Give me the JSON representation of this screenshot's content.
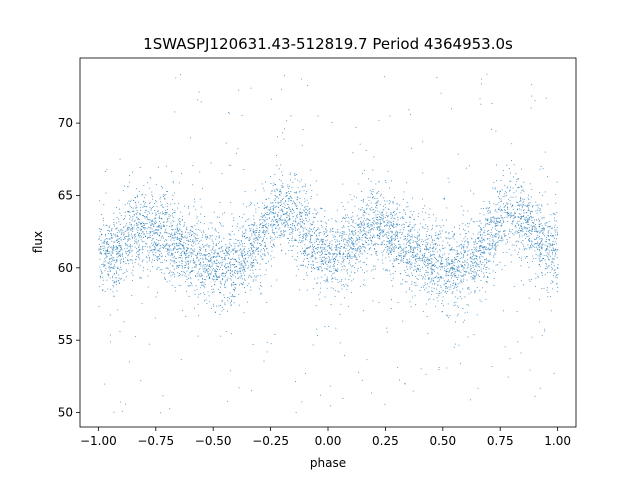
{
  "chart_data": {
    "type": "scatter",
    "title": "1SWASPJ120631.43-512819.7 Period 4364953.0s",
    "xlabel": "phase",
    "ylabel": "flux",
    "xlim": [
      -1.08,
      1.08
    ],
    "ylim": [
      49.0,
      74.5
    ],
    "xticks": [
      -1.0,
      -0.75,
      -0.5,
      -0.25,
      0.0,
      0.25,
      0.5,
      0.75,
      1.0
    ],
    "xtick_labels": [
      "−1.00",
      "−0.75",
      "−0.50",
      "−0.25",
      "0.00",
      "0.25",
      "0.50",
      "0.75",
      "1.00"
    ],
    "yticks": [
      50,
      55,
      60,
      65,
      70
    ],
    "ytick_labels": [
      "50",
      "55",
      "60",
      "65",
      "70"
    ],
    "grid": false,
    "legend": "none",
    "series": [
      {
        "color": "#1f77b4",
        "trend_x": [
          -1.0,
          -0.95,
          -0.9,
          -0.85,
          -0.8,
          -0.75,
          -0.7,
          -0.65,
          -0.6,
          -0.55,
          -0.5,
          -0.45,
          -0.4,
          -0.35,
          -0.3,
          -0.25,
          -0.2,
          -0.15,
          -0.1,
          -0.05,
          0.0,
          0.05,
          0.1,
          0.15,
          0.2,
          0.25,
          0.3,
          0.35,
          0.4,
          0.45,
          0.5,
          0.55,
          0.6,
          0.65,
          0.7,
          0.75,
          0.8,
          0.85,
          0.9,
          0.95,
          1.0
        ],
        "trend_y": [
          61.0,
          61.0,
          61.5,
          62.5,
          63.0,
          62.5,
          62.0,
          61.5,
          61.0,
          60.5,
          60.0,
          60.0,
          60.5,
          61.0,
          62.0,
          63.5,
          64.0,
          63.5,
          62.5,
          61.5,
          61.0,
          61.0,
          61.5,
          62.5,
          63.0,
          62.5,
          62.0,
          61.5,
          61.0,
          60.5,
          60.0,
          60.0,
          60.5,
          61.0,
          62.0,
          63.5,
          64.0,
          63.5,
          62.5,
          61.5,
          61.0
        ],
        "scatter_sd": 1.3,
        "outlier_range": [
          50.0,
          73.5
        ],
        "point_count": 6000
      }
    ]
  }
}
